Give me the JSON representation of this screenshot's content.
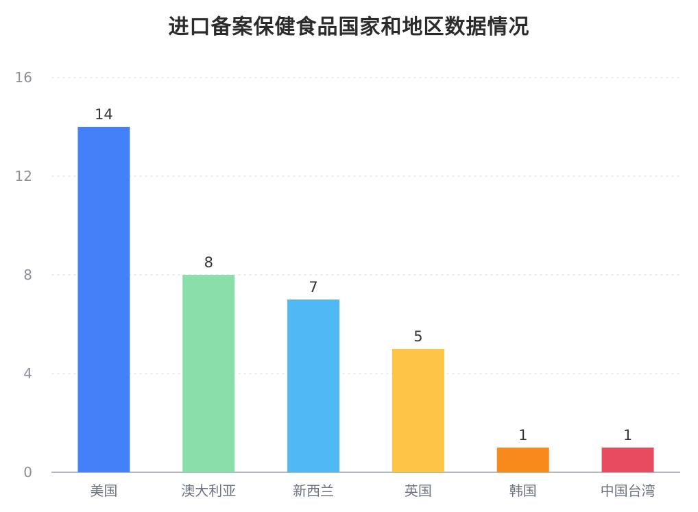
{
  "chart_data": {
    "type": "bar",
    "title": "进口备案保健食品国家和地区数据情况",
    "categories": [
      "美国",
      "澳大利亚",
      "新西兰",
      "英国",
      "韩国",
      "中国台湾"
    ],
    "values": [
      14,
      8,
      7,
      5,
      1,
      1
    ],
    "colors": [
      "#4480f7",
      "#8ade a9",
      "#4fb8f5",
      "#fdc447",
      "#f88a1b",
      "#e84a5f"
    ],
    "yticks": [
      0,
      4,
      8,
      12,
      16
    ],
    "ylim": [
      0,
      16
    ],
    "xlabel": "",
    "ylabel": "",
    "grid": true,
    "data_labels": true
  }
}
